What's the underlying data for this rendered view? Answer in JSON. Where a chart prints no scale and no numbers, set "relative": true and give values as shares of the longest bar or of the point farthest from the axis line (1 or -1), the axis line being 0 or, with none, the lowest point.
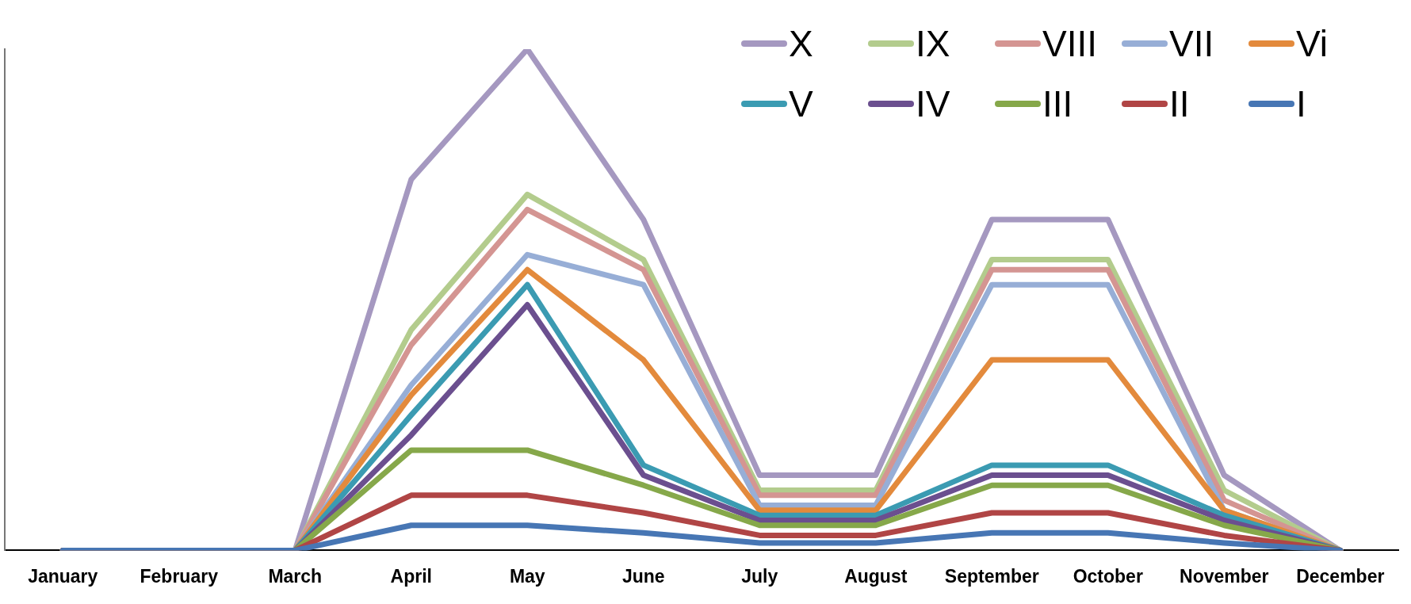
{
  "chart_data": {
    "type": "line",
    "relative": true,
    "legend": "top right",
    "marker": "none",
    "line_style": "solid",
    "grid": false,
    "categories": [
      "January",
      "February",
      "March",
      "April",
      "May",
      "June",
      "July",
      "August",
      "September",
      "October",
      "November",
      "December"
    ],
    "series": [
      {
        "name": "I",
        "color": "#4776b4",
        "values": [
          0,
          0,
          0,
          0.05,
          0.05,
          0.035,
          0.015,
          0.015,
          0.035,
          0.035,
          0.015,
          0
        ]
      },
      {
        "name": "II",
        "color": "#b04545",
        "values": [
          0,
          0,
          0,
          0.11,
          0.11,
          0.075,
          0.03,
          0.03,
          0.075,
          0.075,
          0.03,
          0
        ]
      },
      {
        "name": "III",
        "color": "#86a84a",
        "values": [
          0,
          0,
          0,
          0.2,
          0.2,
          0.13,
          0.05,
          0.05,
          0.13,
          0.13,
          0.05,
          0
        ]
      },
      {
        "name": "IV",
        "color": "#6b4f8f",
        "values": [
          0,
          0,
          0,
          0.23,
          0.49,
          0.15,
          0.06,
          0.06,
          0.15,
          0.15,
          0.06,
          0
        ]
      },
      {
        "name": "V",
        "color": "#3b9bb2",
        "values": [
          0,
          0,
          0,
          0.27,
          0.53,
          0.17,
          0.07,
          0.07,
          0.17,
          0.17,
          0.07,
          0
        ]
      },
      {
        "name": "Vi",
        "color": "#e38a3c",
        "values": [
          0,
          0,
          0,
          0.31,
          0.56,
          0.38,
          0.08,
          0.08,
          0.38,
          0.38,
          0.08,
          0
        ]
      },
      {
        "name": "VII",
        "color": "#97aed6",
        "values": [
          0,
          0,
          0,
          0.33,
          0.59,
          0.53,
          0.09,
          0.09,
          0.53,
          0.53,
          0.08,
          0
        ]
      },
      {
        "name": "VIII",
        "color": "#d49592",
        "values": [
          0,
          0,
          0,
          0.41,
          0.68,
          0.56,
          0.11,
          0.11,
          0.56,
          0.56,
          0.1,
          0
        ]
      },
      {
        "name": "IX",
        "color": "#b3cc8d",
        "values": [
          0,
          0,
          0,
          0.44,
          0.71,
          0.58,
          0.12,
          0.12,
          0.58,
          0.58,
          0.12,
          0
        ]
      },
      {
        "name": "X",
        "color": "#a598c0",
        "values": [
          0,
          0,
          0,
          0.74,
          1,
          0.66,
          0.15,
          0.15,
          0.66,
          0.66,
          0.15,
          0
        ]
      }
    ]
  }
}
